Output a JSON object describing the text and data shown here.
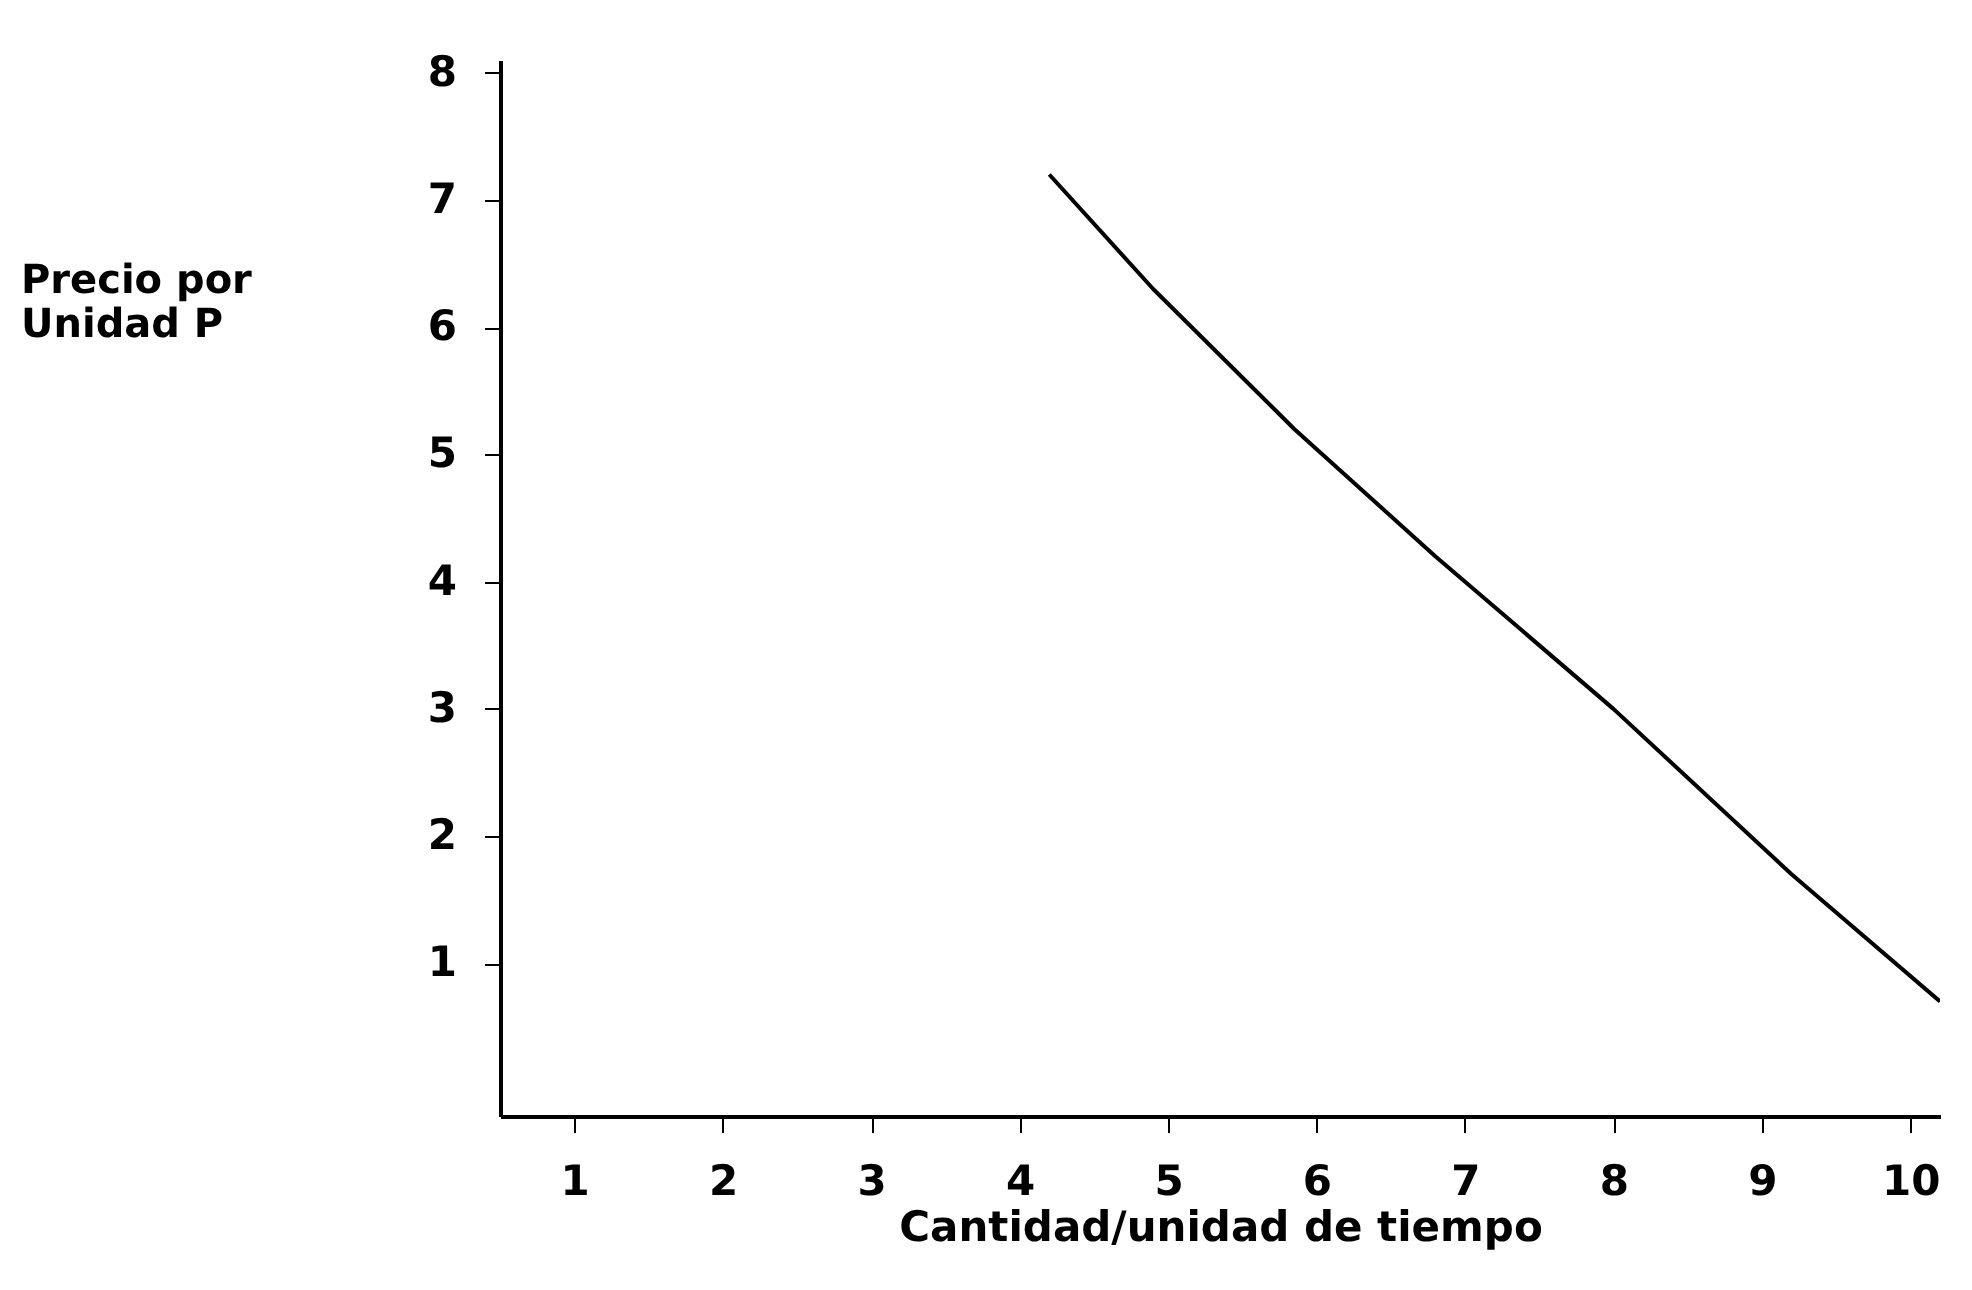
{
  "chart_data": {
    "type": "line",
    "xlabel": "Cantidad/unidad de tiempo",
    "ylabel": "Precio por\nUnidad P",
    "x": [
      4.2,
      4.9,
      5.85,
      6.8,
      8,
      9.2,
      10.2
    ],
    "series": [
      {
        "color": "#000000",
        "values": [
          7.2,
          6.3,
          5.2,
          4.2,
          3,
          1.7,
          0.7
        ]
      }
    ],
    "xlim": [
      0.5,
      10.2
    ],
    "ylim": [
      -0.2,
      8.1
    ],
    "xticks": [
      1,
      2,
      3,
      4,
      5,
      6,
      7,
      8,
      9,
      10
    ],
    "yticks": [
      1,
      2,
      3,
      4,
      5,
      6,
      7,
      8
    ],
    "grid": false,
    "legend": false,
    "marker": "none",
    "line_style": "solid"
  }
}
